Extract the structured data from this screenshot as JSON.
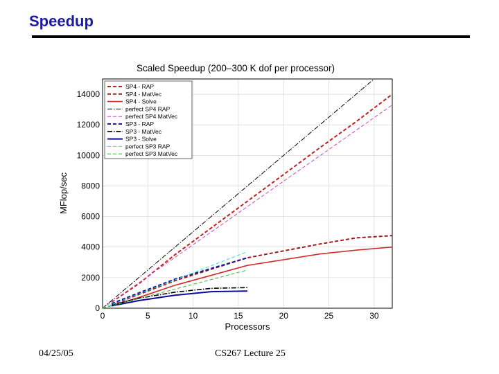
{
  "slide": {
    "title": "Speedup",
    "date": "04/25/05",
    "footer_center": "CS267 Lecture 25",
    "title_color": "#1a1aa6",
    "rule_color": "#000000"
  },
  "chart_data": {
    "type": "line",
    "title": "Scaled Speedup (200–300 K dof per processor)",
    "xlabel": "Processors",
    "ylabel": "MFlop/sec",
    "xlim": [
      0,
      32
    ],
    "ylim": [
      0,
      15000
    ],
    "xticks": [
      0,
      5,
      10,
      15,
      20,
      25,
      30
    ],
    "yticks": [
      0,
      2000,
      4000,
      6000,
      8000,
      10000,
      12000,
      14000
    ],
    "legend_position": "top-left",
    "series": [
      {
        "name": "SP4 - RAP",
        "color": "#c02020",
        "dash": "5,3",
        "width": 2,
        "x": [
          1,
          4,
          8,
          16,
          24,
          28,
          32
        ],
        "y": [
          400,
          1600,
          3500,
          7000,
          10500,
          12200,
          14000
        ]
      },
      {
        "name": "SP4 - MatVec",
        "color": "#a01818",
        "dash": "5,3",
        "width": 2,
        "x": [
          1,
          4,
          8,
          16,
          24,
          28,
          32
        ],
        "y": [
          200,
          900,
          1800,
          3300,
          4200,
          4600,
          4750
        ]
      },
      {
        "name": "SP4 - Solve",
        "color": "#d02a2a",
        "dash": "",
        "width": 1.6,
        "x": [
          1,
          4,
          8,
          16,
          24,
          28,
          32
        ],
        "y": [
          150,
          700,
          1500,
          2800,
          3550,
          3800,
          4000
        ]
      },
      {
        "name": "perfect SP4 RAP",
        "color": "#000000",
        "dash": "7,2,1.5,2",
        "width": 1,
        "x": [
          0,
          30
        ],
        "y": [
          0,
          15000
        ]
      },
      {
        "name": "perfect SP4 MatVec",
        "color": "#cc44cc",
        "dash": "5,3",
        "width": 1,
        "x": [
          0,
          32
        ],
        "y": [
          0,
          13300
        ]
      },
      {
        "name": "SP3 - RAP",
        "color": "#1a1aa0",
        "dash": "5,3",
        "width": 2,
        "x": [
          1,
          4,
          8,
          12,
          16
        ],
        "y": [
          300,
          1000,
          1900,
          2600,
          3300
        ]
      },
      {
        "name": "SP3 - MatVec",
        "color": "#000000",
        "dash": "7,2,1.5,2",
        "width": 1.6,
        "x": [
          1,
          4,
          8,
          12,
          16
        ],
        "y": [
          200,
          650,
          1050,
          1300,
          1350
        ]
      },
      {
        "name": "SP3 - Solve",
        "color": "#0a0a9a",
        "dash": "",
        "width": 2,
        "x": [
          1,
          4,
          8,
          12,
          16
        ],
        "y": [
          150,
          500,
          850,
          1080,
          1120
        ]
      },
      {
        "name": "perfect SP3 RAP",
        "color": "#33dddd",
        "dash": "5,3",
        "width": 1,
        "x": [
          0,
          16
        ],
        "y": [
          0,
          3700
        ]
      },
      {
        "name": "perfect SP3 MatVec",
        "color": "#33bb33",
        "dash": "5,3",
        "width": 1,
        "x": [
          0,
          16
        ],
        "y": [
          0,
          2500
        ]
      }
    ]
  }
}
